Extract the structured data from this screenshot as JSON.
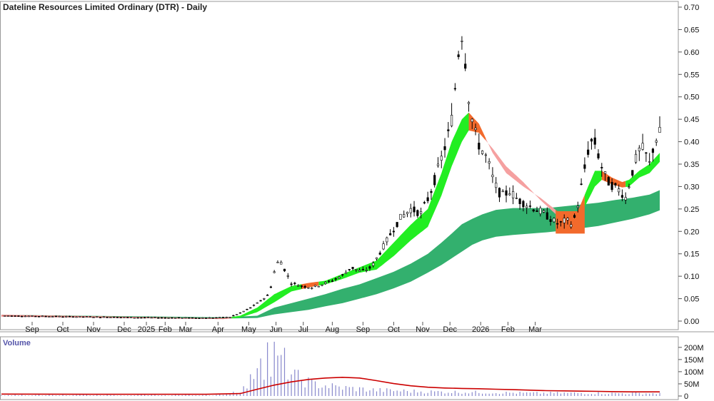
{
  "chart_data": {
    "type": "candlestick",
    "title": "Dateline Resources Limited Ordinary (DTR) - Daily",
    "volume_label": "Volume",
    "x_tick_labels": [
      "Sep",
      "Oct",
      "Nov",
      "Dec",
      "2025",
      "Feb",
      "Mar",
      "Apr",
      "May",
      "Jun",
      "Jul",
      "Aug",
      "Sep",
      "Oct",
      "Nov",
      "Dec",
      "2026",
      "Feb",
      "Mar"
    ],
    "price_axis": {
      "ylim": [
        0,
        0.7
      ],
      "ticks": [
        0.0,
        0.05,
        0.1,
        0.15,
        0.2,
        0.25,
        0.3,
        0.35,
        0.4,
        0.45,
        0.5,
        0.55,
        0.6,
        0.65,
        0.7
      ],
      "tick_labels": [
        "0.00",
        "0.05",
        "0.10",
        "0.15",
        "0.20",
        "0.25",
        "0.30",
        "0.35",
        "0.40",
        "0.45",
        "0.50",
        "0.55",
        "0.60",
        "0.65",
        "0.70"
      ]
    },
    "volume_axis": {
      "ylim": [
        0,
        220
      ],
      "ticks": [
        0,
        50,
        100,
        150,
        200
      ],
      "tick_labels": [
        "0",
        "50M",
        "100M",
        "150M",
        "200M"
      ]
    },
    "price_path": [
      [
        0,
        0.012
      ],
      [
        20,
        0.011
      ],
      [
        40,
        0.01
      ],
      [
        60,
        0.009
      ],
      [
        80,
        0.008
      ],
      [
        95,
        0.0075
      ],
      [
        110,
        0.007
      ],
      [
        125,
        0.0075
      ],
      [
        134,
        0.009
      ],
      [
        140,
        0.018
      ],
      [
        146,
        0.03
      ],
      [
        152,
        0.045
      ],
      [
        157,
        0.06
      ],
      [
        160,
        0.11
      ],
      [
        163,
        0.14
      ],
      [
        166,
        0.115
      ],
      [
        170,
        0.085
      ],
      [
        176,
        0.078
      ],
      [
        182,
        0.075
      ],
      [
        188,
        0.082
      ],
      [
        194,
        0.09
      ],
      [
        200,
        0.102
      ],
      [
        205,
        0.12
      ],
      [
        211,
        0.11
      ],
      [
        217,
        0.12
      ],
      [
        223,
        0.16
      ],
      [
        229,
        0.2
      ],
      [
        234,
        0.23
      ],
      [
        240,
        0.25
      ],
      [
        246,
        0.24
      ],
      [
        251,
        0.28
      ],
      [
        257,
        0.35
      ],
      [
        261,
        0.4
      ],
      [
        264,
        0.45
      ],
      [
        266,
        0.52
      ],
      [
        268,
        0.6
      ],
      [
        270,
        0.64
      ],
      [
        272,
        0.58
      ],
      [
        274,
        0.5
      ],
      [
        276,
        0.45
      ],
      [
        279,
        0.4
      ],
      [
        282,
        0.38
      ],
      [
        285,
        0.36
      ],
      [
        288,
        0.32
      ],
      [
        291,
        0.29
      ],
      [
        294,
        0.28
      ],
      [
        298,
        0.29
      ],
      [
        303,
        0.27
      ],
      [
        308,
        0.26
      ],
      [
        313,
        0.25
      ],
      [
        318,
        0.24
      ],
      [
        323,
        0.225
      ],
      [
        327,
        0.215
      ],
      [
        331,
        0.225
      ],
      [
        335,
        0.215
      ],
      [
        338,
        0.26
      ],
      [
        341,
        0.32
      ],
      [
        344,
        0.38
      ],
      [
        347,
        0.41
      ],
      [
        350,
        0.37
      ],
      [
        353,
        0.33
      ],
      [
        356,
        0.31
      ],
      [
        359,
        0.3
      ],
      [
        363,
        0.29
      ],
      [
        366,
        0.275
      ],
      [
        369,
        0.32
      ],
      [
        372,
        0.36
      ],
      [
        375,
        0.39
      ],
      [
        378,
        0.37
      ],
      [
        380,
        0.35
      ],
      [
        383,
        0.4
      ],
      [
        386,
        0.42
      ]
    ],
    "ema_fast_upper": [
      [
        0,
        0.014
      ],
      [
        130,
        0.0065
      ],
      [
        140,
        0.012
      ],
      [
        150,
        0.03
      ],
      [
        160,
        0.06
      ],
      [
        170,
        0.078
      ],
      [
        180,
        0.085
      ],
      [
        190,
        0.09
      ],
      [
        200,
        0.105
      ],
      [
        210,
        0.12
      ],
      [
        220,
        0.135
      ],
      [
        230,
        0.175
      ],
      [
        240,
        0.215
      ],
      [
        250,
        0.25
      ],
      [
        258,
        0.33
      ],
      [
        264,
        0.4
      ],
      [
        270,
        0.45
      ],
      [
        274,
        0.465
      ],
      [
        280,
        0.44
      ],
      [
        288,
        0.375
      ],
      [
        296,
        0.33
      ],
      [
        306,
        0.3
      ],
      [
        316,
        0.275
      ],
      [
        326,
        0.245
      ],
      [
        332,
        0.23
      ],
      [
        338,
        0.245
      ],
      [
        344,
        0.3
      ],
      [
        348,
        0.335
      ],
      [
        352,
        0.335
      ],
      [
        358,
        0.32
      ],
      [
        364,
        0.31
      ],
      [
        368,
        0.315
      ],
      [
        374,
        0.335
      ],
      [
        380,
        0.35
      ],
      [
        386,
        0.375
      ]
    ],
    "ema_fast_lower": [
      [
        0,
        0.01
      ],
      [
        130,
        0.0045
      ],
      [
        140,
        0.008
      ],
      [
        150,
        0.02
      ],
      [
        160,
        0.042
      ],
      [
        170,
        0.066
      ],
      [
        180,
        0.075
      ],
      [
        190,
        0.082
      ],
      [
        200,
        0.094
      ],
      [
        210,
        0.108
      ],
      [
        220,
        0.115
      ],
      [
        230,
        0.145
      ],
      [
        240,
        0.18
      ],
      [
        250,
        0.21
      ],
      [
        258,
        0.28
      ],
      [
        264,
        0.345
      ],
      [
        270,
        0.4
      ],
      [
        274,
        0.425
      ],
      [
        280,
        0.42
      ],
      [
        288,
        0.385
      ],
      [
        296,
        0.345
      ],
      [
        306,
        0.31
      ],
      [
        316,
        0.27
      ],
      [
        326,
        0.235
      ],
      [
        332,
        0.23
      ],
      [
        338,
        0.225
      ],
      [
        344,
        0.27
      ],
      [
        348,
        0.3
      ],
      [
        352,
        0.315
      ],
      [
        358,
        0.305
      ],
      [
        364,
        0.298
      ],
      [
        368,
        0.3
      ],
      [
        374,
        0.32
      ],
      [
        380,
        0.33
      ],
      [
        386,
        0.355
      ]
    ],
    "ema_slow_upper": [
      [
        0,
        0.014
      ],
      [
        130,
        0.0085
      ],
      [
        150,
        0.012
      ],
      [
        160,
        0.03
      ],
      [
        170,
        0.04
      ],
      [
        180,
        0.05
      ],
      [
        190,
        0.06
      ],
      [
        200,
        0.072
      ],
      [
        210,
        0.082
      ],
      [
        220,
        0.096
      ],
      [
        230,
        0.11
      ],
      [
        240,
        0.128
      ],
      [
        250,
        0.15
      ],
      [
        258,
        0.175
      ],
      [
        264,
        0.195
      ],
      [
        270,
        0.216
      ],
      [
        276,
        0.228
      ],
      [
        282,
        0.238
      ],
      [
        290,
        0.248
      ],
      [
        300,
        0.252
      ],
      [
        310,
        0.252
      ],
      [
        320,
        0.252
      ],
      [
        330,
        0.256
      ],
      [
        340,
        0.26
      ],
      [
        350,
        0.264
      ],
      [
        360,
        0.27
      ],
      [
        370,
        0.275
      ],
      [
        380,
        0.282
      ],
      [
        386,
        0.292
      ]
    ],
    "ema_slow_lower": [
      [
        0,
        0.011
      ],
      [
        130,
        0.0055
      ],
      [
        150,
        0.007
      ],
      [
        160,
        0.015
      ],
      [
        170,
        0.02
      ],
      [
        180,
        0.025
      ],
      [
        190,
        0.033
      ],
      [
        200,
        0.04
      ],
      [
        210,
        0.05
      ],
      [
        220,
        0.06
      ],
      [
        230,
        0.073
      ],
      [
        240,
        0.088
      ],
      [
        250,
        0.108
      ],
      [
        258,
        0.125
      ],
      [
        264,
        0.14
      ],
      [
        270,
        0.155
      ],
      [
        276,
        0.17
      ],
      [
        282,
        0.18
      ],
      [
        290,
        0.188
      ],
      [
        300,
        0.192
      ],
      [
        310,
        0.195
      ],
      [
        320,
        0.198
      ],
      [
        330,
        0.202
      ],
      [
        340,
        0.207
      ],
      [
        350,
        0.212
      ],
      [
        360,
        0.22
      ],
      [
        370,
        0.228
      ],
      [
        380,
        0.238
      ],
      [
        386,
        0.247
      ]
    ],
    "volume_bars": [
      [
        130,
        8
      ],
      [
        140,
        22
      ],
      [
        145,
        45
      ],
      [
        150,
        140
      ],
      [
        152,
        210
      ],
      [
        154,
        120
      ],
      [
        156,
        190
      ],
      [
        158,
        100
      ],
      [
        160,
        175
      ],
      [
        162,
        130
      ],
      [
        164,
        160
      ],
      [
        166,
        140
      ],
      [
        168,
        105
      ],
      [
        170,
        90
      ],
      [
        172,
        80
      ],
      [
        174,
        75
      ],
      [
        176,
        68
      ],
      [
        178,
        62
      ],
      [
        180,
        58
      ],
      [
        182,
        52
      ],
      [
        184,
        49
      ],
      [
        186,
        47
      ],
      [
        188,
        45
      ],
      [
        190,
        43
      ],
      [
        192,
        41
      ],
      [
        194,
        39
      ],
      [
        196,
        37
      ],
      [
        198,
        35
      ],
      [
        200,
        34
      ],
      [
        202,
        33
      ],
      [
        204,
        32
      ],
      [
        206,
        31
      ],
      [
        208,
        30
      ],
      [
        210,
        29
      ],
      [
        212,
        28
      ],
      [
        214,
        27
      ],
      [
        216,
        26
      ],
      [
        218,
        25
      ],
      [
        220,
        24
      ],
      [
        225,
        23
      ],
      [
        230,
        22
      ],
      [
        235,
        21
      ],
      [
        240,
        20
      ],
      [
        245,
        19
      ],
      [
        250,
        18
      ],
      [
        260,
        17
      ],
      [
        270,
        16
      ],
      [
        280,
        15
      ],
      [
        290,
        14
      ],
      [
        300,
        13
      ],
      [
        310,
        12
      ],
      [
        320,
        12
      ],
      [
        330,
        12
      ],
      [
        340,
        12
      ],
      [
        350,
        12
      ],
      [
        360,
        11
      ],
      [
        370,
        11
      ],
      [
        380,
        11
      ],
      [
        386,
        11
      ]
    ],
    "volume_ma": [
      [
        0,
        8
      ],
      [
        60,
        7
      ],
      [
        120,
        7
      ],
      [
        140,
        10
      ],
      [
        150,
        28
      ],
      [
        160,
        45
      ],
      [
        170,
        58
      ],
      [
        180,
        68
      ],
      [
        190,
        74
      ],
      [
        200,
        77
      ],
      [
        210,
        74
      ],
      [
        220,
        63
      ],
      [
        230,
        51
      ],
      [
        240,
        42
      ],
      [
        250,
        36
      ],
      [
        260,
        33
      ],
      [
        270,
        31
      ],
      [
        280,
        30
      ],
      [
        290,
        28
      ],
      [
        300,
        26
      ],
      [
        310,
        24
      ],
      [
        320,
        22
      ],
      [
        330,
        21
      ],
      [
        340,
        20
      ],
      [
        350,
        19
      ],
      [
        360,
        18
      ],
      [
        370,
        17
      ],
      [
        380,
        17
      ],
      [
        386,
        17
      ]
    ],
    "colors": {
      "band_fast_up": "#22ee22",
      "band_fast_down": "#f26a2c",
      "band_fast_pink": "#f5a0a0",
      "band_slow": "#33b06e",
      "volume_bar": "#8888cc",
      "volume_ma": "#cc0000",
      "early_line": "#f08080",
      "candle": "#000000"
    },
    "legend": "none"
  }
}
